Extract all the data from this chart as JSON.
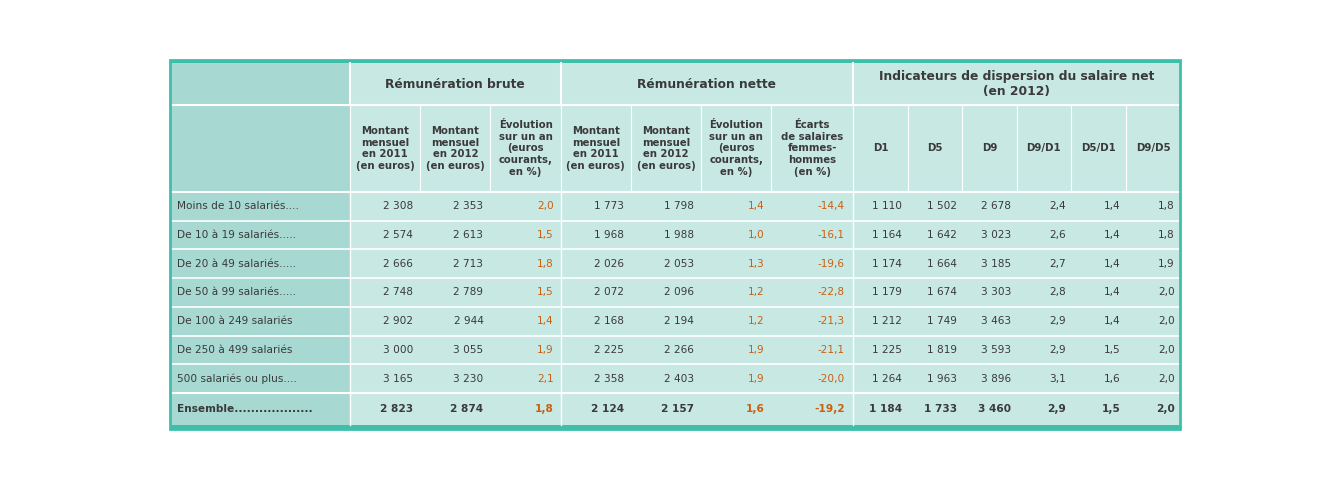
{
  "teal_dark": "#3dbfaa",
  "teal_mid": "#a8d8d2",
  "teal_light": "#c8e8e4",
  "white": "#ffffff",
  "text_dark": "#3a3a3a",
  "text_orange": "#c86010",
  "border_color": "#3dbfaa",
  "col_headers": [
    "",
    "Montant\nmensuel\nen 2011\n(en euros)",
    "Montant\nmensuel\nen 2012\n(en euros)",
    "Évolution\nsur un an\n(euros\ncourants,\nen %)",
    "Montant\nmensuel\nen 2011\n(en euros)",
    "Montant\nmensuel\nen 2012\n(en euros)",
    "Évolution\nsur un an\n(euros\ncourants,\nen %)",
    "Écarts\nde salaires\nfemmes-\nhommes\n(en %)",
    "D1",
    "D5",
    "D9",
    "D9/D1",
    "D5/D1",
    "D9/D5"
  ],
  "rows": [
    [
      "Moins de 10 salariés....",
      "2 308",
      "2 353",
      "2,0",
      "1 773",
      "1 798",
      "1,4",
      "-14,4",
      "1 110",
      "1 502",
      "2 678",
      "2,4",
      "1,4",
      "1,8"
    ],
    [
      "De 10 à 19 salariés.....",
      "2 574",
      "2 613",
      "1,5",
      "1 968",
      "1 988",
      "1,0",
      "-16,1",
      "1 164",
      "1 642",
      "3 023",
      "2,6",
      "1,4",
      "1,8"
    ],
    [
      "De 20 à 49 salariés.....",
      "2 666",
      "2 713",
      "1,8",
      "2 026",
      "2 053",
      "1,3",
      "-19,6",
      "1 174",
      "1 664",
      "3 185",
      "2,7",
      "1,4",
      "1,9"
    ],
    [
      "De 50 à 99 salariés.....",
      "2 748",
      "2 789",
      "1,5",
      "2 072",
      "2 096",
      "1,2",
      "-22,8",
      "1 179",
      "1 674",
      "3 303",
      "2,8",
      "1,4",
      "2,0"
    ],
    [
      "De 100 à 249 salariés",
      "2 902",
      "2 944",
      "1,4",
      "2 168",
      "2 194",
      "1,2",
      "-21,3",
      "1 212",
      "1 749",
      "3 463",
      "2,9",
      "1,4",
      "2,0"
    ],
    [
      "De 250 à 499 salariés",
      "3 000",
      "3 055",
      "1,9",
      "2 225",
      "2 266",
      "1,9",
      "-21,1",
      "1 225",
      "1 819",
      "3 593",
      "2,9",
      "1,5",
      "2,0"
    ],
    [
      "500 salariés ou plus....",
      "3 165",
      "3 230",
      "2,1",
      "2 358",
      "2 403",
      "1,9",
      "-20,0",
      "1 264",
      "1 963",
      "3 896",
      "3,1",
      "1,6",
      "2,0"
    ]
  ],
  "footer": [
    "Ensemble...................",
    "2 823",
    "2 874",
    "1,8",
    "2 124",
    "2 157",
    "1,6",
    "-19,2",
    "1 184",
    "1 733",
    "3 460",
    "2,9",
    "1,5",
    "2,0"
  ],
  "col_widths_raw": [
    1.72,
    0.67,
    0.67,
    0.67,
    0.67,
    0.67,
    0.67,
    0.78,
    0.52,
    0.52,
    0.52,
    0.52,
    0.52,
    0.52
  ]
}
